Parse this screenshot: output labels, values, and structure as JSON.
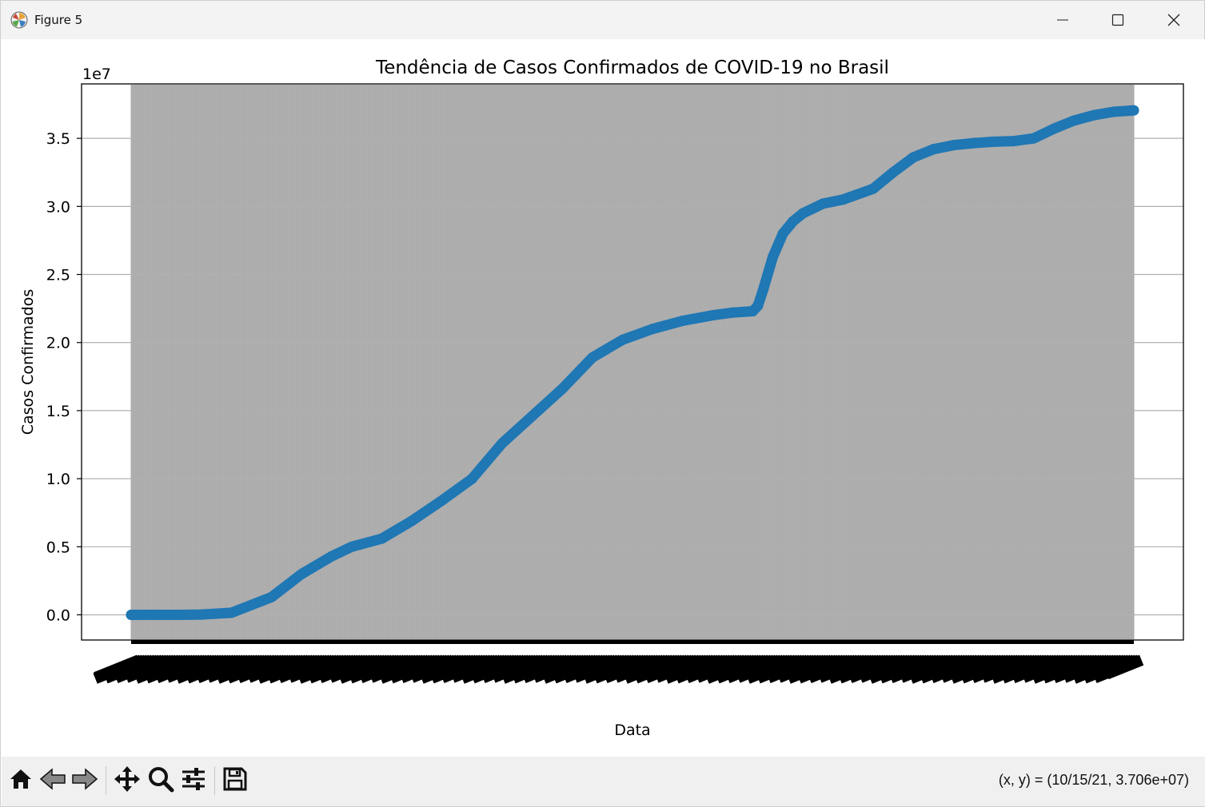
{
  "window": {
    "title": "Figure 5",
    "icons": [
      "matplotlib-icon",
      "minimize-icon",
      "maximize-icon",
      "close-icon"
    ]
  },
  "chart_data": {
    "type": "line",
    "title": "Tendência de Casos Confirmados de COVID-19 no Brasil",
    "xlabel": "Data",
    "ylabel": "Casos Confirmados",
    "y_offset_label": "1e7",
    "ylim": [
      -1850000,
      39000000
    ],
    "yticks": [
      0,
      5000000,
      10000000,
      15000000,
      20000000,
      25000000,
      30000000,
      35000000
    ],
    "ytick_labels": [
      "0.0",
      "0.5",
      "1.0",
      "1.5",
      "2.0",
      "2.5",
      "3.0",
      "3.5"
    ],
    "grid": "horizontal",
    "x_axis_note": "dense overlapping rotated date tick labels (illegible)",
    "color": "#1f77b4",
    "series": [
      {
        "x": [
          0,
          0.05,
          0.07,
          0.1,
          0.14,
          0.17,
          0.2,
          0.22,
          0.25,
          0.28,
          0.31,
          0.34,
          0.37,
          0.4,
          0.43,
          0.46,
          0.49,
          0.52,
          0.55,
          0.58,
          0.6,
          0.62,
          0.625,
          0.63,
          0.64,
          0.65,
          0.66,
          0.67,
          0.69,
          0.71,
          0.74,
          0.76,
          0.78,
          0.8,
          0.82,
          0.84,
          0.86,
          0.88,
          0.9,
          0.92,
          0.94,
          0.96,
          0.98,
          1.0
        ],
        "y": [
          0,
          0,
          20000,
          150000,
          1300000,
          3000000,
          4300000,
          5000000,
          5600000,
          6900000,
          8400000,
          10000000,
          12600000,
          14600000,
          16600000,
          18900000,
          20200000,
          21000000,
          21600000,
          22000000,
          22200000,
          22300000,
          22700000,
          23800000,
          26300000,
          28000000,
          28900000,
          29500000,
          30200000,
          30500000,
          31300000,
          32500000,
          33600000,
          34200000,
          34500000,
          34650000,
          34750000,
          34800000,
          35000000,
          35700000,
          36300000,
          36700000,
          36950000,
          37060000
        ]
      }
    ]
  },
  "toolbar": {
    "tools": [
      "home-icon",
      "back-icon",
      "forward-icon",
      "pan-icon",
      "zoom-icon",
      "configure-subplots-icon",
      "save-icon"
    ],
    "coords": "(x, y) = (10/15/21, 3.706e+07)"
  }
}
